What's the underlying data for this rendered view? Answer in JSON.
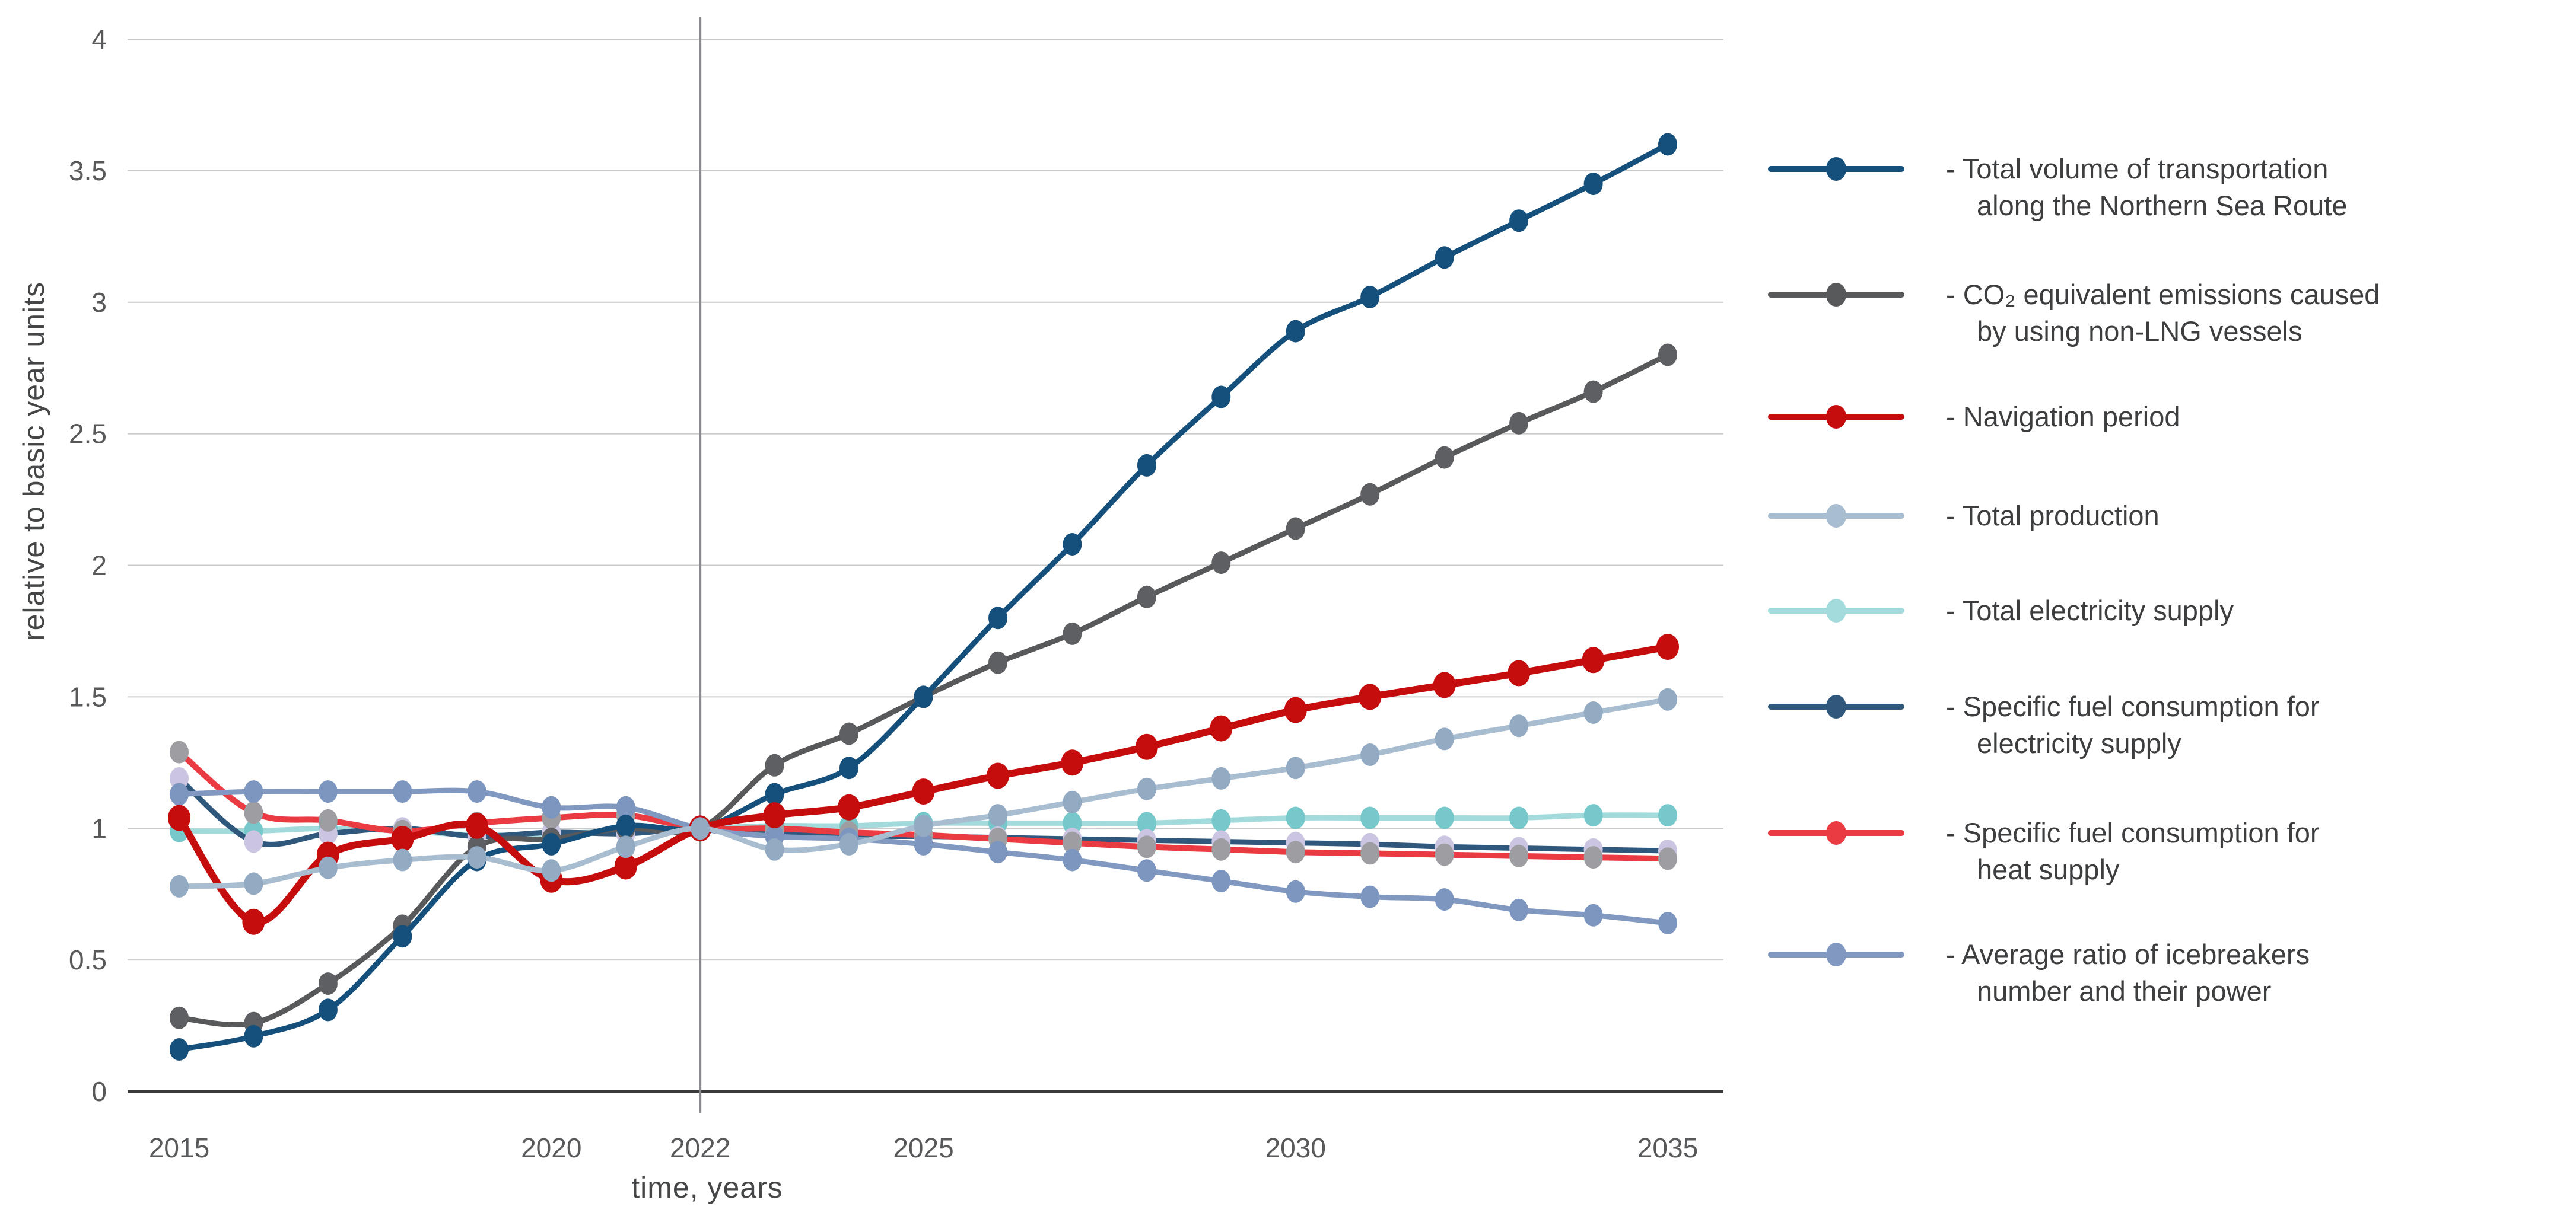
{
  "chart_data": {
    "type": "line",
    "title": "",
    "xlabel": "time, years",
    "ylabel": "relative to basic year units",
    "x": [
      2015,
      2016,
      2017,
      2018,
      2019,
      2020,
      2021,
      2022,
      2023,
      2024,
      2025,
      2026,
      2027,
      2028,
      2029,
      2030,
      2031,
      2032,
      2033,
      2034,
      2035
    ],
    "x_ticks": [
      2015,
      2020,
      2022,
      2025,
      2030,
      2035
    ],
    "y_ticks": [
      0,
      0.5,
      1,
      1.5,
      2,
      2.5,
      3,
      3.5,
      4
    ],
    "ylim": [
      0,
      4
    ],
    "baseline_marker_year": 2022,
    "legend_position": "right",
    "grid": "horizontal",
    "colors": {
      "grid": "#c9cacb",
      "zero_axis": "#3b3b3d",
      "baseline_vertical_line": "#8a8b8e",
      "tick_text": "#58595b",
      "legend_text": "#3d3e40"
    },
    "series": [
      {
        "name": "total-volume-transportation",
        "legend_lines": [
          "- Total volume of transportation",
          "along the Northern Sea Route"
        ],
        "line_color": "#15507d",
        "marker_color": "#15507d",
        "line_width": 9,
        "marker_rx": 16,
        "marker_ry": 19,
        "z": 6,
        "values": [
          0.16,
          0.21,
          0.31,
          0.59,
          0.88,
          0.94,
          1.01,
          1.0,
          1.13,
          1.23,
          1.5,
          1.8,
          2.08,
          2.38,
          2.64,
          2.89,
          3.02,
          3.17,
          3.31,
          3.45,
          3.6
        ]
      },
      {
        "name": "co2-emissions-non-lng",
        "legend_lines": [
          "- CO₂ equivalent emissions caused",
          "by using non-LNG vessels"
        ],
        "line_color": "#58595b",
        "marker_color": "#5e5f62",
        "line_width": 9,
        "marker_rx": 16,
        "marker_ry": 19,
        "z": 5,
        "values": [
          0.28,
          0.26,
          0.41,
          0.63,
          0.93,
          0.96,
          1.0,
          1.0,
          1.24,
          1.36,
          1.5,
          1.63,
          1.74,
          1.88,
          2.01,
          2.14,
          2.27,
          2.41,
          2.54,
          2.66,
          2.8
        ]
      },
      {
        "name": "navigation-period",
        "legend_lines": [
          "- Navigation period"
        ],
        "line_color": "#c50d0e",
        "marker_color": "#c50d0e",
        "line_width": 12,
        "marker_rx": 19,
        "marker_ry": 22,
        "z": 7,
        "values": [
          1.04,
          0.645,
          0.9,
          0.96,
          1.01,
          0.805,
          0.855,
          1.0,
          1.05,
          1.08,
          1.14,
          1.2,
          1.25,
          1.31,
          1.38,
          1.45,
          1.5,
          1.545,
          1.59,
          1.64,
          1.69
        ]
      },
      {
        "name": "total-production",
        "legend_lines": [
          "- Total production"
        ],
        "line_color": "#a9bdd1",
        "marker_color": "#93aac3",
        "line_width": 9,
        "marker_rx": 16,
        "marker_ry": 19,
        "z": 8,
        "values": [
          0.78,
          0.79,
          0.85,
          0.88,
          0.89,
          0.84,
          0.93,
          1.0,
          0.92,
          0.94,
          1.01,
          1.05,
          1.1,
          1.15,
          1.19,
          1.23,
          1.28,
          1.34,
          1.39,
          1.44,
          1.49
        ]
      },
      {
        "name": "total-electricity-supply",
        "legend_lines": [
          "- Total electricity supply"
        ],
        "line_color": "#a3dbdc",
        "marker_color": "#76c8ca",
        "line_width": 9,
        "marker_rx": 16,
        "marker_ry": 19,
        "z": 1,
        "values": [
          0.99,
          0.99,
          1.0,
          0.99,
          0.975,
          0.98,
          0.99,
          1.0,
          1.01,
          1.01,
          1.02,
          1.02,
          1.02,
          1.02,
          1.03,
          1.04,
          1.04,
          1.04,
          1.04,
          1.05,
          1.05
        ]
      },
      {
        "name": "specific-fuel-consumption-electricity",
        "legend_lines": [
          "- Specific fuel consumption for",
          "electricity supply"
        ],
        "line_color": "#30587c",
        "marker_color": "#cbc5e2",
        "line_width": 9,
        "marker_rx": 16,
        "marker_ry": 19,
        "z": 2,
        "values": [
          1.19,
          0.95,
          0.98,
          1.0,
          0.97,
          0.985,
          0.98,
          1.0,
          0.98,
          0.97,
          0.97,
          0.965,
          0.96,
          0.955,
          0.95,
          0.945,
          0.94,
          0.93,
          0.925,
          0.92,
          0.915
        ]
      },
      {
        "name": "specific-fuel-consumption-heat",
        "legend_lines": [
          "- Specific fuel consumption for",
          "heat supply"
        ],
        "line_color": "#ea3a42",
        "marker_color": "#9d9da2",
        "line_width": 10,
        "marker_rx": 16,
        "marker_ry": 19,
        "z": 3,
        "values": [
          1.29,
          1.06,
          1.03,
          0.99,
          1.02,
          1.04,
          1.05,
          1.0,
          1.0,
          0.985,
          0.975,
          0.96,
          0.945,
          0.93,
          0.92,
          0.91,
          0.905,
          0.9,
          0.895,
          0.89,
          0.885
        ]
      },
      {
        "name": "icebreakers-ratio",
        "legend_lines": [
          "- Average ratio of icebreakers",
          "number and their power"
        ],
        "line_color": "#8199c1",
        "marker_color": "#7d96bf",
        "line_width": 9,
        "marker_rx": 16,
        "marker_ry": 19,
        "z": 4,
        "values": [
          1.13,
          1.14,
          1.14,
          1.14,
          1.14,
          1.08,
          1.08,
          1.0,
          0.97,
          0.96,
          0.94,
          0.91,
          0.88,
          0.84,
          0.8,
          0.76,
          0.74,
          0.73,
          0.69,
          0.67,
          0.64
        ]
      }
    ]
  }
}
